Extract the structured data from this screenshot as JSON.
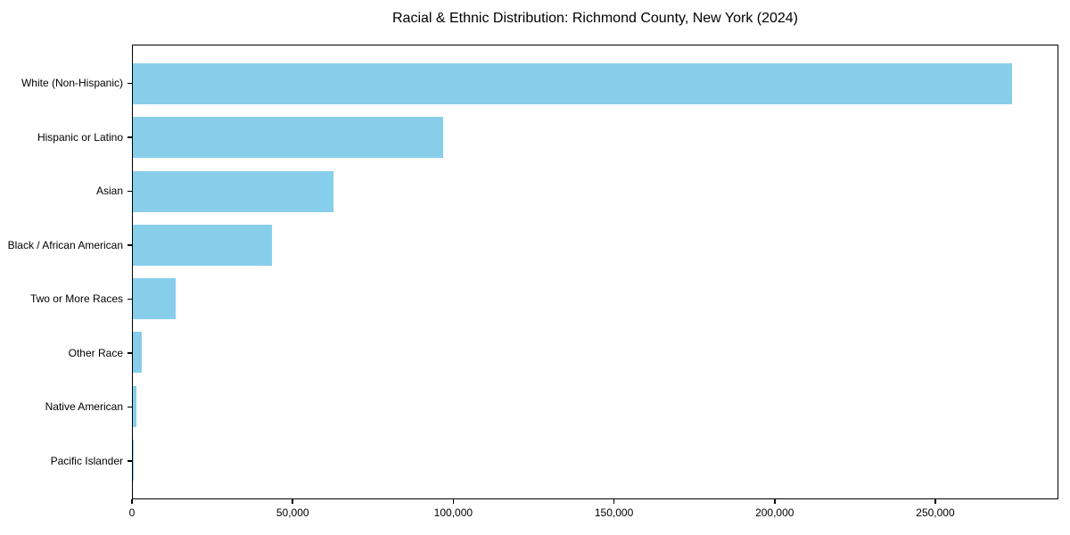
{
  "title": "Racial & Ethnic Distribution: Richmond County, New York (2024)",
  "chart_data": {
    "type": "bar",
    "orientation": "horizontal",
    "title": "Racial & Ethnic Distribution: Richmond County, New York (2024)",
    "categories": [
      "White (Non-Hispanic)",
      "Hispanic or Latino",
      "Asian",
      "Black / African American",
      "Two or More Races",
      "Other Race",
      "Native American",
      "Pacific Islander"
    ],
    "values": [
      274000,
      96700,
      62500,
      43300,
      13300,
      2800,
      1100,
      100
    ],
    "xlabel": "",
    "ylabel": "",
    "xlim": [
      0,
      288300
    ],
    "x_ticks": [
      0,
      50000,
      100000,
      150000,
      200000,
      250000
    ],
    "x_tick_labels": [
      "0",
      "50,000",
      "100,000",
      "150,000",
      "200,000",
      "250,000"
    ],
    "bar_color": "#87CEEB",
    "axis_color": "#000000",
    "background_color": "#ffffff",
    "grid": false,
    "legend": null
  }
}
